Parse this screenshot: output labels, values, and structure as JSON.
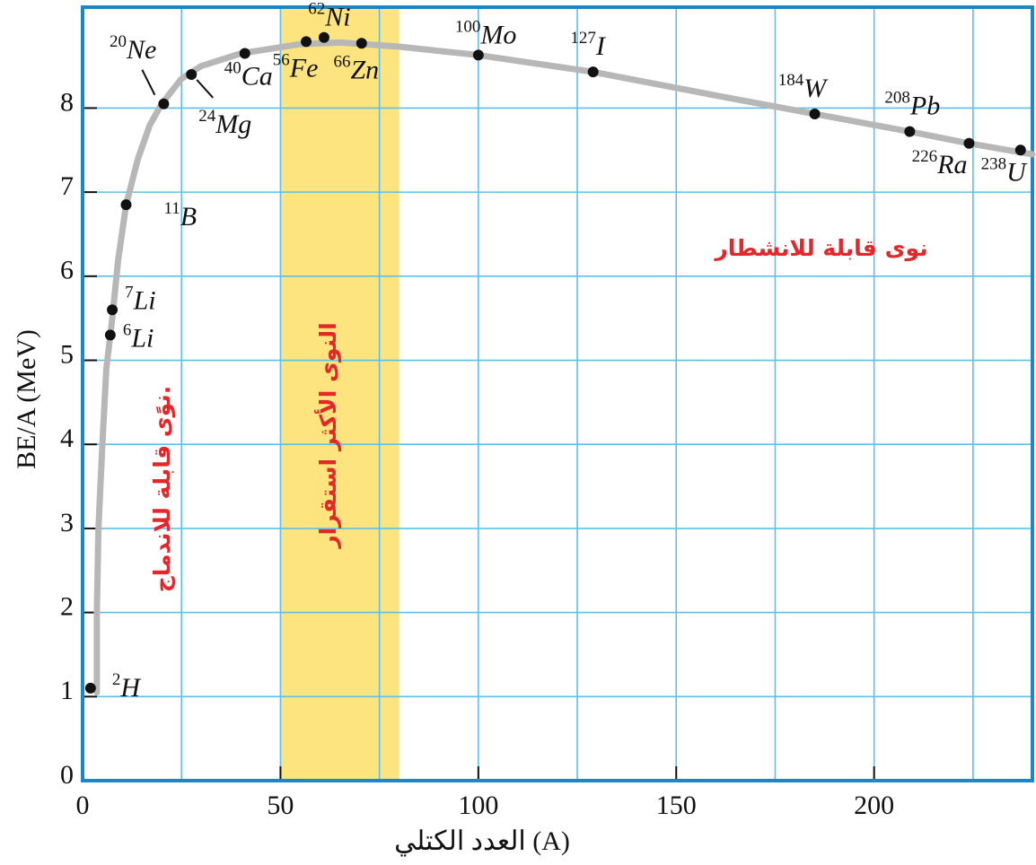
{
  "chart_data": {
    "type": "line",
    "xlabel": "العدد الكتلي (A)",
    "ylabel": "BE/A  (MeV)",
    "xlim": [
      0,
      240
    ],
    "ylim": [
      0,
      9.2
    ],
    "xticks": [
      0,
      50,
      100,
      150,
      200
    ],
    "yticks": [
      0,
      1,
      2,
      3,
      4,
      5,
      6,
      7,
      8
    ],
    "xgrid": [
      25,
      50,
      75,
      100,
      125,
      150,
      175,
      200,
      225
    ],
    "grid_color": "#5cc0ea",
    "frame_color": "#1b86c8",
    "band": {
      "range": [
        50,
        80
      ],
      "color": "#fde47f",
      "label": "النوى الأكثر استقرار"
    },
    "fusion_label": "نوًى قابلة للاندماج.",
    "fission_label": "نوى قابلة للانشطار",
    "curve": {
      "color": "#b7b7b7",
      "x": [
        3.6,
        3.6,
        4,
        5,
        6,
        7.5,
        9,
        11,
        14,
        17,
        20,
        25,
        30,
        40,
        55,
        65,
        80,
        100,
        129,
        160,
        185,
        209,
        224,
        240
      ],
      "y": [
        1.05,
        2,
        3,
        4,
        4.9,
        5.5,
        6.2,
        6.85,
        7.4,
        7.8,
        8.05,
        8.35,
        8.5,
        8.65,
        8.76,
        8.78,
        8.73,
        8.63,
        8.43,
        8.15,
        7.93,
        7.72,
        7.58,
        7.45
      ]
    },
    "point_color": "#111111",
    "nuclides": [
      {
        "mass": "2",
        "symbol": "H",
        "x": 2,
        "y": 1.1
      },
      {
        "mass": "6",
        "symbol": "Li",
        "x": 7,
        "y": 5.3
      },
      {
        "mass": "7",
        "symbol": "Li",
        "x": 7.5,
        "y": 5.6
      },
      {
        "mass": "11",
        "symbol": "B",
        "x": 11,
        "y": 6.85
      },
      {
        "mass": "20",
        "symbol": "Ne",
        "x": 20.5,
        "y": 8.05
      },
      {
        "mass": "24",
        "symbol": "Mg",
        "x": 27.5,
        "y": 8.4
      },
      {
        "mass": "40",
        "symbol": "Ca",
        "x": 41,
        "y": 8.65
      },
      {
        "mass": "56",
        "symbol": "Fe",
        "x": 56.5,
        "y": 8.79
      },
      {
        "mass": "62",
        "symbol": "Ni",
        "x": 61,
        "y": 8.84
      },
      {
        "mass": "66",
        "symbol": "Zn",
        "x": 70.5,
        "y": 8.77
      },
      {
        "mass": "100",
        "symbol": "Mo",
        "x": 100,
        "y": 8.63
      },
      {
        "mass": "127",
        "symbol": "I",
        "x": 129,
        "y": 8.43
      },
      {
        "mass": "184",
        "symbol": "W",
        "x": 185,
        "y": 7.93
      },
      {
        "mass": "208",
        "symbol": "Pb",
        "x": 209,
        "y": 7.72
      },
      {
        "mass": "226",
        "symbol": "Ra",
        "x": 224,
        "y": 7.58
      },
      {
        "mass": "238",
        "symbol": "U",
        "x": 237,
        "y": 7.5
      }
    ]
  }
}
